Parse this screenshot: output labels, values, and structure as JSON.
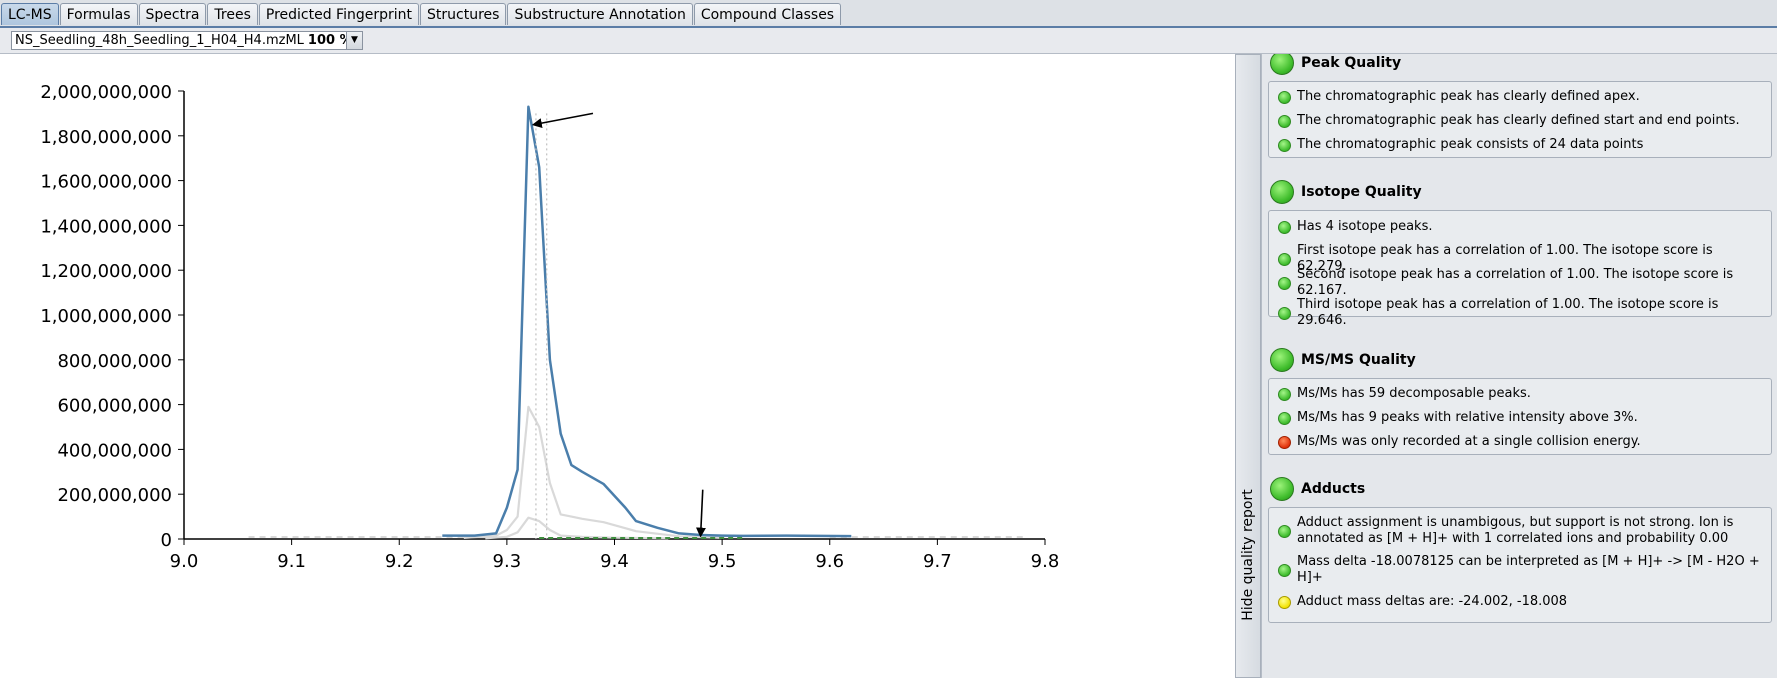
{
  "tabs": [
    {
      "label": "LC-MS",
      "active": true
    },
    {
      "label": "Formulas"
    },
    {
      "label": "Spectra"
    },
    {
      "label": "Trees"
    },
    {
      "label": "Predicted Fingerprint"
    },
    {
      "label": "Structures"
    },
    {
      "label": "Substructure Annotation"
    },
    {
      "label": "Compound Classes"
    }
  ],
  "selector": {
    "file": "NS_Seedling_48h_Seedling_1_H04_H4.mzML",
    "percent": "100 %"
  },
  "hide_button": "Hide quality report",
  "quality": {
    "peak": {
      "title": "Peak Quality",
      "items": [
        {
          "text": "The chromatographic peak has clearly defined apex.",
          "status": "green"
        },
        {
          "text": "The chromatographic peak has clearly defined start and end points.",
          "status": "green"
        },
        {
          "text": "The chromatographic peak consists of 24 data points",
          "status": "green"
        }
      ]
    },
    "isotope": {
      "title": "Isotope Quality",
      "items": [
        {
          "text": "Has 4 isotope peaks.",
          "status": "green"
        },
        {
          "text": "First isotope peak has a correlation of 1.00. The isotope score is 62.279.",
          "status": "green"
        },
        {
          "text": "Second isotope peak has a correlation of 1.00. The isotope score is 62.167.",
          "status": "green"
        },
        {
          "text": "Third isotope peak has a correlation of 1.00. The isotope score is 29.646.",
          "status": "green"
        }
      ]
    },
    "msms": {
      "title": "MS/MS Quality",
      "items": [
        {
          "text": "Ms/Ms has 59 decomposable peaks.",
          "status": "green"
        },
        {
          "text": "Ms/Ms has 9 peaks with relative intensity above 3%.",
          "status": "green"
        },
        {
          "text": "Ms/Ms was only recorded at a single collision energy.",
          "status": "red"
        }
      ]
    },
    "adducts": {
      "title": "Adducts",
      "items": [
        {
          "text": "Adduct assignment is unambigous, but support is not strong. Ion is annotated as [M + H]+ with 1 correlated ions and probability 0.00",
          "status": "green"
        },
        {
          "text": "Mass delta -18.0078125 can be interpreted as [M + H]+ -> [M - H2O + H]+",
          "status": "green"
        },
        {
          "text": "Adduct mass deltas are: -24.002, -18.008",
          "status": "yellow"
        }
      ]
    }
  },
  "chart_data": {
    "type": "line",
    "xlim": [
      9.0,
      9.8
    ],
    "ylim": [
      0,
      2000000000
    ],
    "xticks": [
      "9.0",
      "9.1",
      "9.2",
      "9.3",
      "9.4",
      "9.5",
      "9.6",
      "9.7",
      "9.8"
    ],
    "yticks": [
      "0",
      "200,000,000",
      "400,000,000",
      "600,000,000",
      "800,000,000",
      "1,000,000,000",
      "1,200,000,000",
      "1,400,000,000",
      "1,600,000,000",
      "1,800,000,000",
      "2,000,000,000"
    ],
    "colors": {
      "main": "#4a7eab",
      "isotope": "#d9d9d9",
      "apex": "#c0c0c0",
      "base": "#3f8f3f"
    },
    "series": [
      {
        "role": "main",
        "x": [
          9.24,
          9.27,
          9.29,
          9.3,
          9.31,
          9.32,
          9.33,
          9.34,
          9.35,
          9.36,
          9.37,
          9.39,
          9.41,
          9.42,
          9.44,
          9.46,
          9.48,
          9.5,
          9.52,
          9.56,
          9.59,
          9.62
        ],
        "y": [
          15000000,
          15000000,
          25000000,
          140000000,
          310000000,
          1930000000,
          1660000000,
          800000000,
          470000000,
          330000000,
          300000000,
          245000000,
          140000000,
          80000000,
          50000000,
          25000000,
          18000000,
          15000000,
          14000000,
          15000000,
          14000000,
          13000000
        ]
      },
      {
        "role": "isotope",
        "x": [
          9.26,
          9.29,
          9.3,
          9.31,
          9.32,
          9.33,
          9.34,
          9.35,
          9.36,
          9.37,
          9.39,
          9.42,
          9.46,
          9.5
        ],
        "y": [
          5000000,
          15000000,
          40000000,
          100000000,
          590000000,
          500000000,
          250000000,
          110000000,
          100000000,
          90000000,
          75000000,
          35000000,
          12000000,
          5000000
        ]
      },
      {
        "role": "isotope",
        "x": [
          9.28,
          9.3,
          9.31,
          9.32,
          9.33,
          9.34,
          9.35,
          9.37,
          9.4,
          9.45
        ],
        "y": [
          3000000,
          10000000,
          30000000,
          95000000,
          80000000,
          40000000,
          15000000,
          10000000,
          6000000,
          3000000
        ]
      }
    ],
    "apex_lines_x": [
      9.327,
      9.337
    ],
    "arrows": [
      {
        "x_from": 9.38,
        "y_from": 1900000000,
        "x_to": 9.325,
        "y_to": 1850000000
      },
      {
        "x_from": 9.482,
        "y_from": 220000000,
        "x_to": 9.48,
        "y_to": 15000000
      }
    ]
  }
}
